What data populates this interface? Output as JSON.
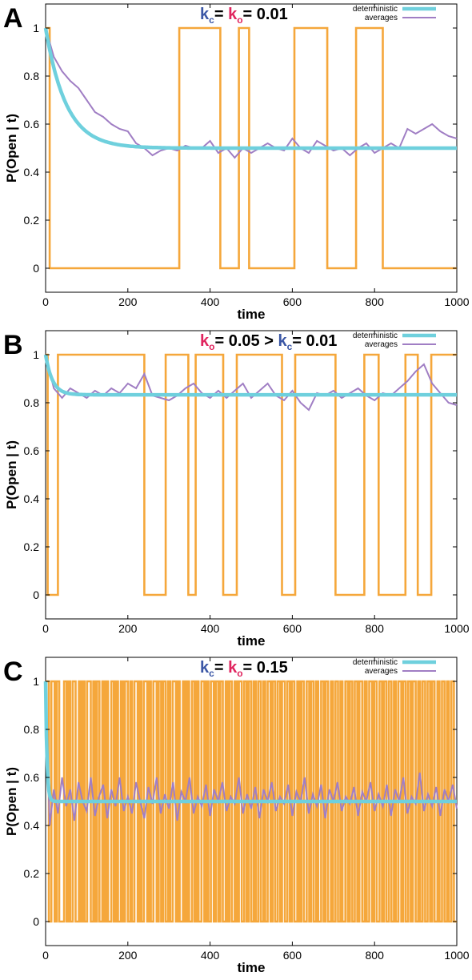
{
  "colors": {
    "deterministic": "#6fd0dd",
    "averages": "#a07ec4",
    "trajectory": "#f5a73b",
    "kc": "#3a56a5",
    "ko": "#e0245e"
  },
  "chart_data": [
    {
      "type": "line",
      "panel": "A",
      "title_parts": [
        {
          "text": "k",
          "color": "kc"
        },
        {
          "text": "c",
          "color": "kc",
          "sub": true
        },
        {
          "text": "= ",
          "color": "black"
        },
        {
          "text": "k",
          "color": "ko"
        },
        {
          "text": "o",
          "color": "ko",
          "sub": true
        },
        {
          "text": "= 0.01",
          "color": "black"
        }
      ],
      "xlabel": "time",
      "ylabel": "P(Open | t)",
      "xlim": [
        0,
        1000
      ],
      "ylim": [
        -0.1,
        1.1
      ],
      "xticks": [
        "0",
        "200",
        "400",
        "600",
        "800",
        "1000"
      ],
      "yticks": [
        "0",
        "0.2",
        "0.4",
        "0.6",
        "0.8",
        "1"
      ],
      "legend": [
        "deterministic",
        "averages"
      ],
      "legend_position": "top-right",
      "rates": {
        "kc": 0.01,
        "ko": 0.01
      },
      "deterministic_steady": 0.5,
      "trajectory_switch_times": [
        10,
        325,
        425,
        470,
        495,
        605,
        685,
        755,
        820
      ],
      "averages_series": {
        "x": [
          0,
          20,
          40,
          60,
          80,
          100,
          120,
          140,
          160,
          180,
          200,
          220,
          240,
          260,
          280,
          300,
          320,
          340,
          360,
          380,
          400,
          420,
          440,
          460,
          480,
          500,
          520,
          540,
          560,
          580,
          600,
          620,
          640,
          660,
          680,
          700,
          720,
          740,
          760,
          780,
          800,
          820,
          840,
          860,
          880,
          900,
          920,
          940,
          960,
          980,
          1000
        ],
        "values": [
          1.0,
          0.88,
          0.82,
          0.78,
          0.75,
          0.7,
          0.65,
          0.63,
          0.6,
          0.58,
          0.57,
          0.52,
          0.5,
          0.47,
          0.49,
          0.5,
          0.49,
          0.51,
          0.5,
          0.5,
          0.53,
          0.48,
          0.5,
          0.46,
          0.5,
          0.48,
          0.5,
          0.52,
          0.5,
          0.49,
          0.54,
          0.5,
          0.48,
          0.53,
          0.51,
          0.49,
          0.5,
          0.47,
          0.5,
          0.52,
          0.48,
          0.5,
          0.52,
          0.5,
          0.58,
          0.56,
          0.58,
          0.6,
          0.57,
          0.55,
          0.54
        ]
      }
    },
    {
      "type": "line",
      "panel": "B",
      "title_parts": [
        {
          "text": "k",
          "color": "ko"
        },
        {
          "text": "o",
          "color": "ko",
          "sub": true
        },
        {
          "text": "= 0.05  > ",
          "color": "black"
        },
        {
          "text": "k",
          "color": "kc"
        },
        {
          "text": "c",
          "color": "kc",
          "sub": true
        },
        {
          "text": "= 0.01",
          "color": "black"
        }
      ],
      "xlabel": "time",
      "ylabel": "P(Open | t)",
      "xlim": [
        0,
        1000
      ],
      "ylim": [
        -0.1,
        1.1
      ],
      "xticks": [
        "0",
        "200",
        "400",
        "600",
        "800",
        "1000"
      ],
      "yticks": [
        "0",
        "0.2",
        "0.4",
        "0.6",
        "0.8",
        "1"
      ],
      "legend": [
        "deterministic",
        "averages"
      ],
      "legend_position": "top-right",
      "rates": {
        "kc": 0.01,
        "ko": 0.05
      },
      "deterministic_steady": 0.833,
      "trajectory_switch_times": [
        5,
        30,
        240,
        292,
        347,
        365,
        432,
        465,
        575,
        607,
        705,
        775,
        810,
        875,
        905,
        938
      ],
      "averages_series": {
        "x": [
          0,
          20,
          40,
          60,
          80,
          100,
          120,
          140,
          160,
          180,
          200,
          220,
          240,
          260,
          280,
          300,
          320,
          340,
          360,
          380,
          400,
          420,
          440,
          460,
          480,
          500,
          520,
          540,
          560,
          580,
          600,
          620,
          640,
          660,
          680,
          700,
          720,
          740,
          760,
          780,
          800,
          820,
          840,
          860,
          880,
          900,
          920,
          940,
          960,
          980,
          1000
        ],
        "values": [
          1.0,
          0.86,
          0.82,
          0.86,
          0.84,
          0.82,
          0.85,
          0.83,
          0.86,
          0.84,
          0.88,
          0.86,
          0.92,
          0.83,
          0.82,
          0.81,
          0.83,
          0.86,
          0.88,
          0.84,
          0.82,
          0.85,
          0.82,
          0.85,
          0.88,
          0.82,
          0.85,
          0.88,
          0.83,
          0.81,
          0.85,
          0.8,
          0.77,
          0.84,
          0.83,
          0.85,
          0.82,
          0.84,
          0.86,
          0.83,
          0.81,
          0.84,
          0.83,
          0.86,
          0.89,
          0.93,
          0.96,
          0.88,
          0.84,
          0.8,
          0.79
        ]
      }
    },
    {
      "type": "line",
      "panel": "C",
      "title_parts": [
        {
          "text": "k",
          "color": "kc"
        },
        {
          "text": "c",
          "color": "kc",
          "sub": true
        },
        {
          "text": "= ",
          "color": "black"
        },
        {
          "text": "k",
          "color": "ko"
        },
        {
          "text": "o",
          "color": "ko",
          "sub": true
        },
        {
          "text": "= 0.15",
          "color": "black"
        }
      ],
      "xlabel": "time",
      "ylabel": "P(Open | t)",
      "xlim": [
        0,
        1000
      ],
      "ylim": [
        -0.1,
        1.1
      ],
      "xticks": [
        "0",
        "200",
        "400",
        "600",
        "800",
        "1000"
      ],
      "yticks": [
        "0",
        "0.2",
        "0.4",
        "0.6",
        "0.8",
        "1"
      ],
      "legend": [
        "deterministic",
        "averages"
      ],
      "legend_position": "top-right",
      "rates": {
        "kc": 0.15,
        "ko": 0.15
      },
      "deterministic_steady": 0.5,
      "trajectory_switch_times": [
        8,
        14,
        22,
        27,
        33,
        45,
        51,
        56,
        60,
        66,
        73,
        81,
        86,
        90,
        95,
        101,
        110,
        116,
        120,
        125,
        131,
        138,
        142,
        147,
        152,
        160,
        166,
        171,
        176,
        183,
        188,
        193,
        200,
        206,
        210,
        216,
        224,
        229,
        233,
        239,
        247,
        252,
        256,
        262,
        270,
        275,
        281,
        286,
        292,
        298,
        303,
        309,
        317,
        321,
        326,
        334,
        339,
        344,
        349,
        356,
        362,
        367,
        372,
        379,
        386,
        391,
        396,
        402,
        409,
        414,
        420,
        425,
        431,
        438,
        442,
        447,
        453,
        460,
        465,
        470,
        477,
        483,
        489,
        494,
        500,
        506,
        511,
        517,
        523,
        529,
        534,
        540,
        547,
        552,
        558,
        564,
        570,
        575,
        582,
        588,
        594,
        599,
        605,
        612,
        617,
        622,
        628,
        635,
        641,
        646,
        652,
        658,
        663,
        670,
        676,
        681,
        687,
        694,
        699,
        705,
        711,
        717,
        722,
        729,
        735,
        740,
        746,
        752,
        758,
        763,
        770,
        776,
        781,
        787,
        794,
        799,
        805,
        812,
        818,
        823,
        829,
        835,
        841,
        847,
        852,
        858,
        865,
        870,
        876,
        882,
        888,
        893,
        900,
        906,
        911,
        917,
        923,
        929,
        935,
        940,
        946,
        953,
        958,
        964,
        970,
        976,
        981,
        987,
        993
      ],
      "averages_series": {
        "x": [
          0,
          10,
          20,
          30,
          40,
          50,
          60,
          70,
          80,
          90,
          100,
          110,
          120,
          130,
          140,
          150,
          160,
          170,
          180,
          190,
          200,
          210,
          220,
          230,
          240,
          250,
          260,
          270,
          280,
          290,
          300,
          310,
          320,
          330,
          340,
          350,
          360,
          370,
          380,
          390,
          400,
          410,
          420,
          430,
          440,
          450,
          460,
          470,
          480,
          490,
          500,
          510,
          520,
          530,
          540,
          550,
          560,
          570,
          580,
          590,
          600,
          610,
          620,
          630,
          640,
          650,
          660,
          670,
          680,
          690,
          700,
          710,
          720,
          730,
          740,
          750,
          760,
          770,
          780,
          790,
          800,
          810,
          820,
          830,
          840,
          850,
          860,
          870,
          880,
          890,
          900,
          910,
          920,
          930,
          940,
          950,
          960,
          970,
          980,
          990,
          1000
        ],
        "values": [
          1.0,
          0.4,
          0.55,
          0.45,
          0.6,
          0.48,
          0.55,
          0.42,
          0.58,
          0.5,
          0.46,
          0.6,
          0.44,
          0.52,
          0.57,
          0.43,
          0.55,
          0.48,
          0.6,
          0.46,
          0.52,
          0.45,
          0.58,
          0.5,
          0.43,
          0.56,
          0.49,
          0.6,
          0.45,
          0.53,
          0.47,
          0.58,
          0.42,
          0.54,
          0.5,
          0.6,
          0.45,
          0.52,
          0.48,
          0.57,
          0.44,
          0.55,
          0.5,
          0.58,
          0.46,
          0.52,
          0.49,
          0.6,
          0.45,
          0.53,
          0.47,
          0.56,
          0.43,
          0.55,
          0.5,
          0.58,
          0.46,
          0.52,
          0.49,
          0.57,
          0.44,
          0.54,
          0.5,
          0.6,
          0.45,
          0.53,
          0.48,
          0.57,
          0.43,
          0.55,
          0.5,
          0.58,
          0.46,
          0.52,
          0.49,
          0.56,
          0.44,
          0.54,
          0.5,
          0.58,
          0.46,
          0.53,
          0.48,
          0.57,
          0.44,
          0.55,
          0.5,
          0.6,
          0.45,
          0.52,
          0.49,
          0.62,
          0.46,
          0.53,
          0.48,
          0.56,
          0.44,
          0.55,
          0.5,
          0.57,
          0.47
        ]
      }
    }
  ]
}
